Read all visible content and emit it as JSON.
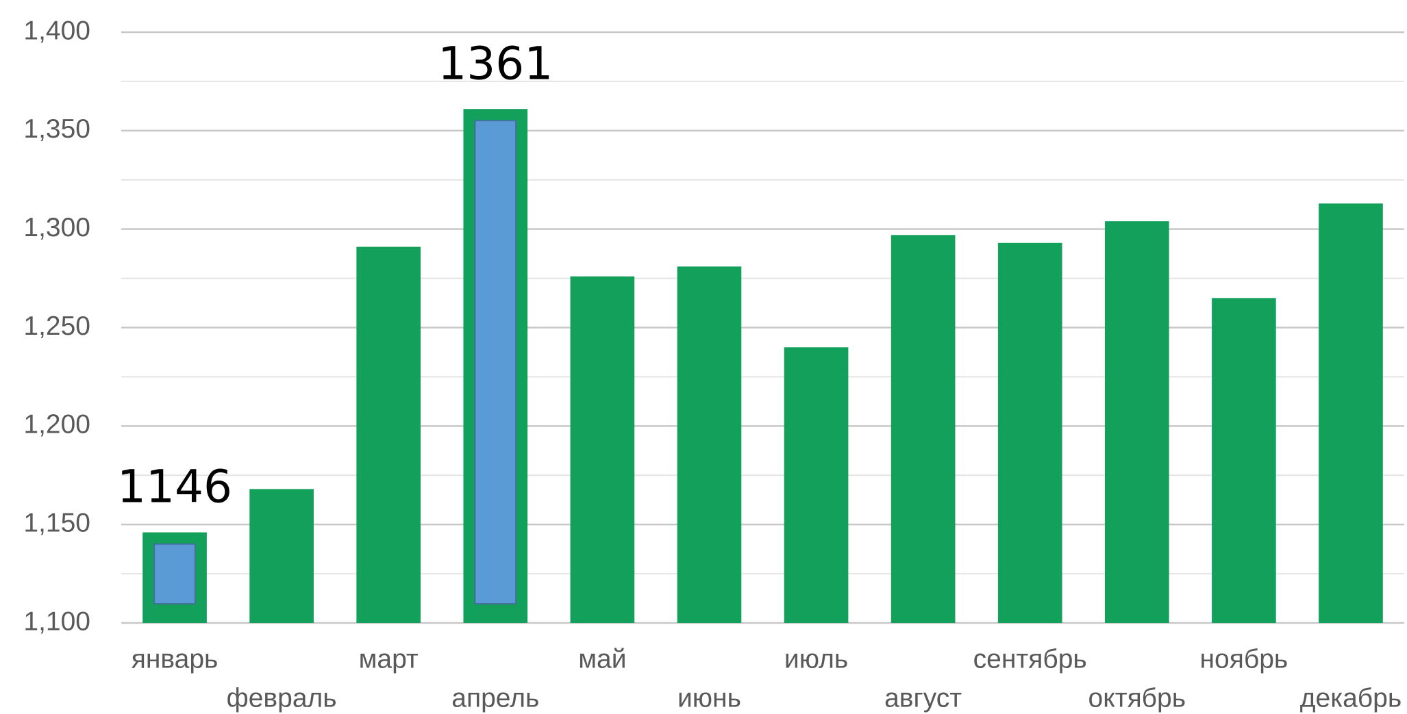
{
  "chart_data": {
    "type": "bar",
    "categories": [
      "январь",
      "февраль",
      "март",
      "апрель",
      "май",
      "июнь",
      "июль",
      "август",
      "сентябрь",
      "октябрь",
      "ноябрь",
      "декабрь"
    ],
    "values": [
      1146,
      1168,
      1291,
      1361,
      1276,
      1281,
      1240,
      1297,
      1293,
      1304,
      1265,
      1313
    ],
    "value_labels": [
      "1146",
      null,
      null,
      "1361",
      null,
      null,
      null,
      null,
      null,
      null,
      null,
      null
    ],
    "color": "#12a05a",
    "highlight_color": "#5b9bd5",
    "ylim": [
      1100,
      1400
    ],
    "yticks": [
      {
        "value": 1100,
        "label": "1,100"
      },
      {
        "value": 1150,
        "label": "1,150"
      },
      {
        "value": 1200,
        "label": "1,200"
      },
      {
        "value": 1250,
        "label": "1,250"
      },
      {
        "value": 1300,
        "label": "1,300"
      },
      {
        "value": 1350,
        "label": "1,350"
      },
      {
        "value": 1400,
        "label": "1,400"
      }
    ],
    "minor_yticks": [
      1125,
      1175,
      1225,
      1275,
      1325,
      1375
    ],
    "grid": true
  }
}
